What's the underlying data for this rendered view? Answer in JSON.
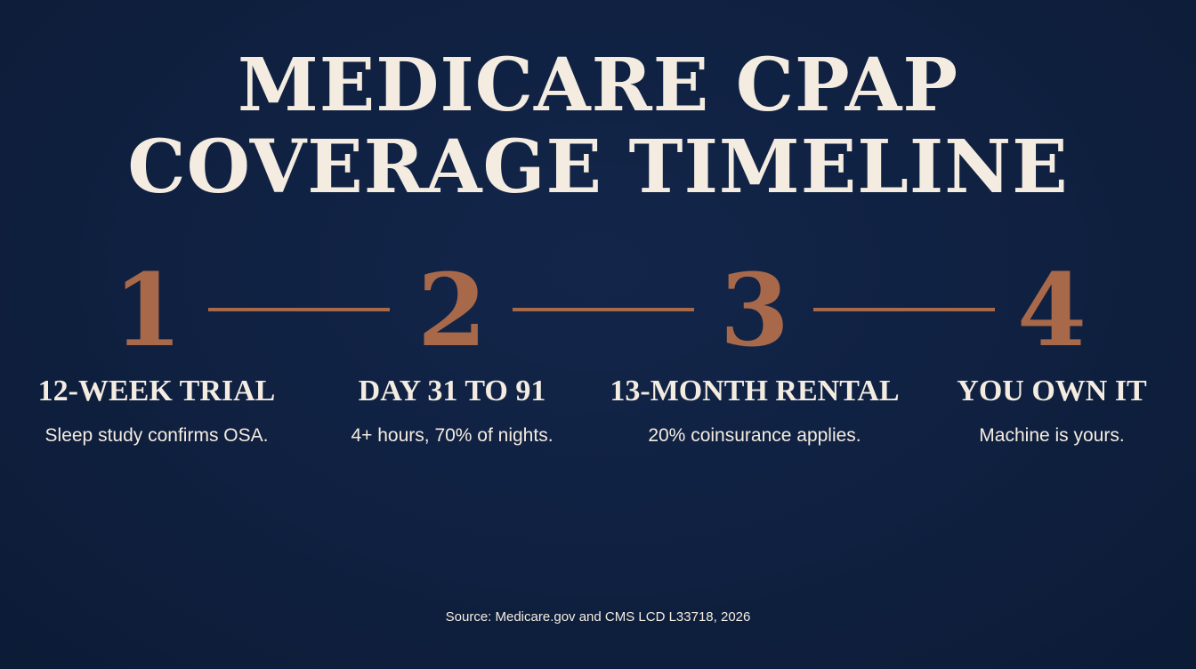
{
  "title": {
    "line1": "MEDICARE CPAP",
    "line2": "COVERAGE TIMELINE"
  },
  "steps": [
    {
      "number": "1",
      "heading": "12-WEEK TRIAL",
      "description": "Sleep study confirms OSA."
    },
    {
      "number": "2",
      "heading": "DAY 31 TO 91",
      "description": "4+ hours, 70% of nights."
    },
    {
      "number": "3",
      "heading": "13-MONTH RENTAL",
      "description": "20% coinsurance applies."
    },
    {
      "number": "4",
      "heading": "YOU OWN IT",
      "description": "Machine is yours."
    }
  ],
  "source": "Source: Medicare.gov and CMS LCD L33718, 2026",
  "colors": {
    "background": "#0e1f3d",
    "accent": "#a8694a",
    "text": "#f4ece0"
  }
}
